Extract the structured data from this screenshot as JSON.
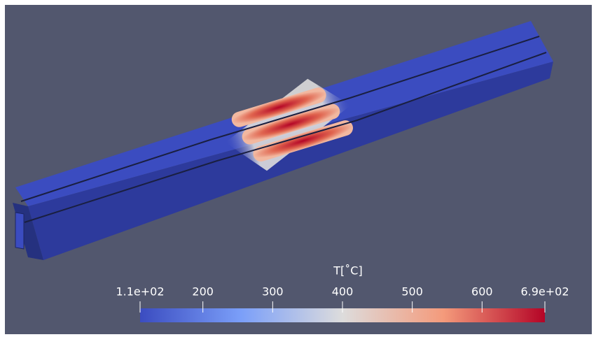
{
  "colorbar": {
    "title": "T[˚C]",
    "range": [
      110,
      690
    ],
    "ticks": [
      {
        "value": 110,
        "label": "1.1e+02"
      },
      200,
      300,
      400,
      500,
      600,
      {
        "value": 690,
        "label": "6.9e+02"
      }
    ]
  }
}
